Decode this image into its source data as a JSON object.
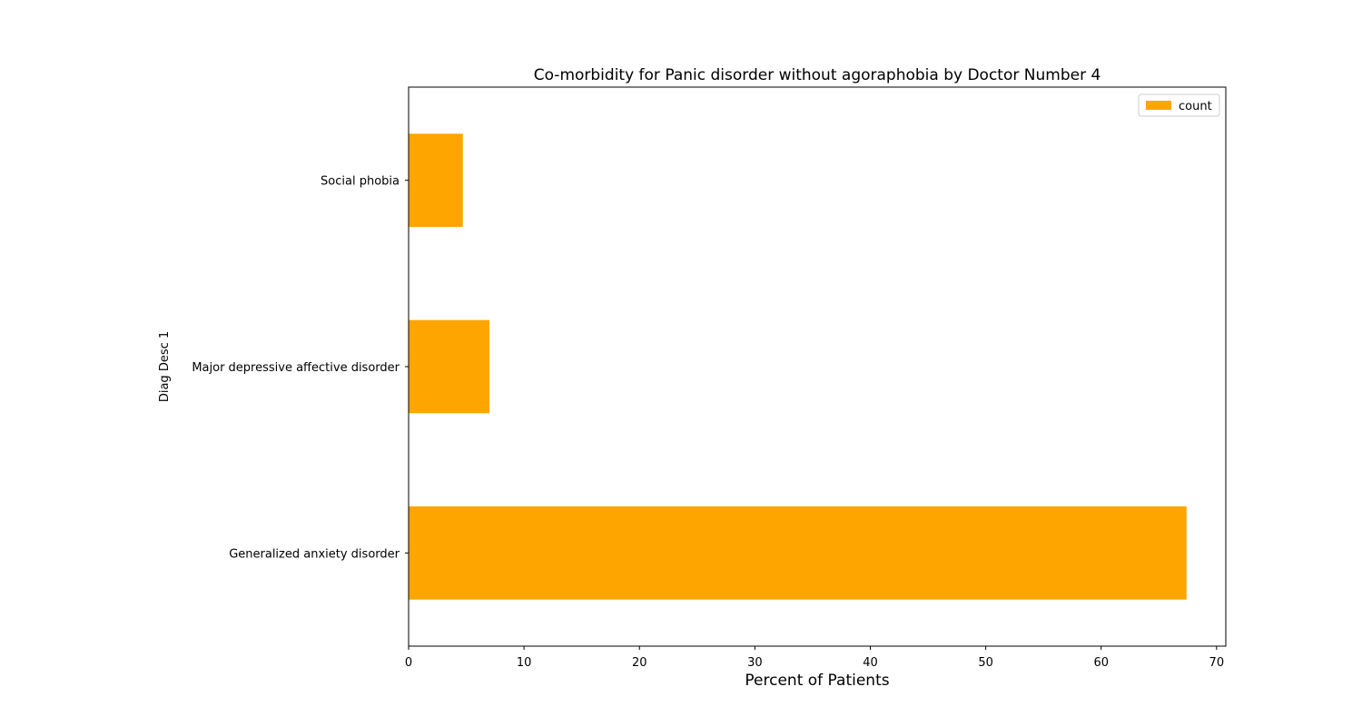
{
  "chart_data": {
    "type": "bar",
    "orientation": "horizontal",
    "title": "Co-morbidity for Panic disorder without agoraphobia by Doctor Number 4",
    "xlabel": "Percent of Patients",
    "ylabel": "Diag Desc 1",
    "categories": [
      "Generalized anxiety disorder",
      "Major depressive affective disorder",
      "Social phobia"
    ],
    "series": [
      {
        "name": "count",
        "values": [
          67.4,
          7.0,
          4.7
        ],
        "color": "#ffa500"
      }
    ],
    "xlim": [
      0,
      70.8
    ],
    "xticks": [
      0,
      10,
      20,
      30,
      40,
      50,
      60,
      70
    ],
    "grid": false,
    "legend": "top-right"
  }
}
